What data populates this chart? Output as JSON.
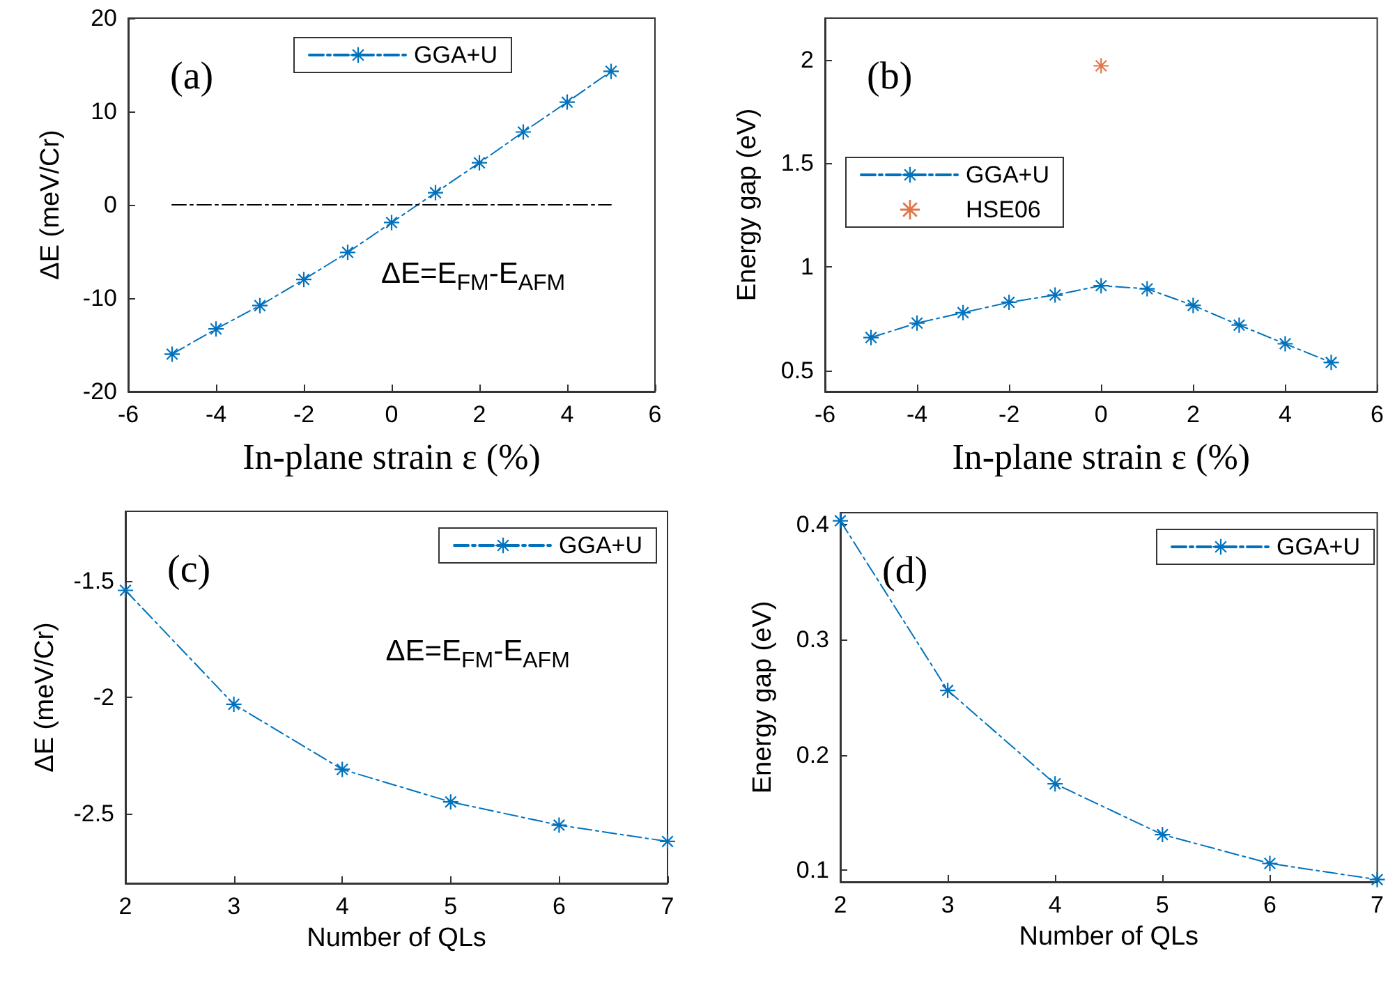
{
  "chart_data": [
    {
      "type": "line",
      "xlabel": "In-plane strain ε (%)",
      "ylabel": "ΔE (meV/Cr)",
      "annotations": [
        "(a)",
        "ΔE=E$_{FM}$-E$_{AFM}$"
      ],
      "x": [
        -5,
        -4,
        -3,
        -2,
        -1,
        0,
        1,
        2,
        3,
        4,
        5
      ],
      "series": [
        {
          "name": "GGA+U",
          "color": "#0072bd",
          "values": [
            -16,
            -13.3,
            -10.8,
            -8,
            -5.1,
            -1.9,
            1.3,
            4.5,
            7.8,
            11,
            14.3
          ]
        },
        {
          "color": "#000000",
          "x": [
            -5,
            5
          ],
          "values": [
            0,
            0
          ],
          "marker": "none"
        }
      ],
      "xlim": [
        -6,
        6
      ],
      "xticks": [
        -6,
        -4,
        -2,
        0,
        2,
        4,
        6
      ],
      "ylim": [
        -20,
        20
      ],
      "yticks": [
        -20,
        -10,
        0,
        10,
        20
      ],
      "grid": false,
      "legend": "top",
      "marker": "star",
      "line_style": "dashed"
    },
    {
      "type": "line",
      "xlabel": "In-plane strain ε (%)",
      "ylabel": "Energy gap (eV)",
      "annotations": [
        "(b)"
      ],
      "x": [
        -5,
        -4,
        -3,
        -2,
        -1,
        0,
        1,
        2,
        3,
        4,
        5
      ],
      "series": [
        {
          "name": "GGA+U",
          "color": "#0072bd",
          "values": [
            0.66,
            0.73,
            0.78,
            0.83,
            0.865,
            0.91,
            0.895,
            0.815,
            0.72,
            0.63,
            0.54
          ]
        },
        {
          "name": "HSE06",
          "type": "scatter",
          "color": "#d95319",
          "x": [
            0
          ],
          "values": [
            1.97
          ]
        }
      ],
      "xlim": [
        -6,
        6
      ],
      "xticks": [
        -6,
        -4,
        -2,
        0,
        2,
        4,
        6
      ],
      "ylim": [
        0.4,
        2.2
      ],
      "yticks": [
        0.5,
        1,
        1.5,
        2
      ],
      "grid": false,
      "legend": "left",
      "marker": "star",
      "line_style": "dashed"
    },
    {
      "type": "line",
      "xlabel": "Number of QLs",
      "ylabel": "ΔE (meV/Cr)",
      "annotations": [
        "(c)",
        "ΔE=E$_{FM}$-E$_{AFM}$"
      ],
      "x": [
        2,
        3,
        4,
        5,
        6,
        7
      ],
      "series": [
        {
          "name": "GGA+U",
          "color": "#0072bd",
          "values": [
            -1.54,
            -2.03,
            -2.31,
            -2.45,
            -2.55,
            -2.62
          ]
        }
      ],
      "xlim": [
        2,
        7
      ],
      "xticks": [
        2,
        3,
        4,
        5,
        6,
        7
      ],
      "ylim": [
        -2.8,
        -1.2
      ],
      "yticks": [
        -2.5,
        -2,
        -1.5
      ],
      "grid": false,
      "legend": "top right",
      "marker": "star",
      "line_style": "dashed"
    },
    {
      "type": "line",
      "xlabel": "Number of QLs",
      "ylabel": "Energy gap (eV)",
      "annotations": [
        "(d)"
      ],
      "x": [
        2,
        3,
        4,
        5,
        6,
        7
      ],
      "series": [
        {
          "name": "GGA+U",
          "color": "#0072bd",
          "values": [
            0.403,
            0.256,
            0.175,
            0.131,
            0.106,
            0.092
          ]
        }
      ],
      "xlim": [
        2,
        7
      ],
      "xticks": [
        2,
        3,
        4,
        5,
        6,
        7
      ],
      "ylim": [
        0.09,
        0.41
      ],
      "yticks": [
        0.1,
        0.2,
        0.3,
        0.4
      ],
      "grid": false,
      "legend": "top right",
      "marker": "star",
      "line_style": "dashed"
    }
  ]
}
